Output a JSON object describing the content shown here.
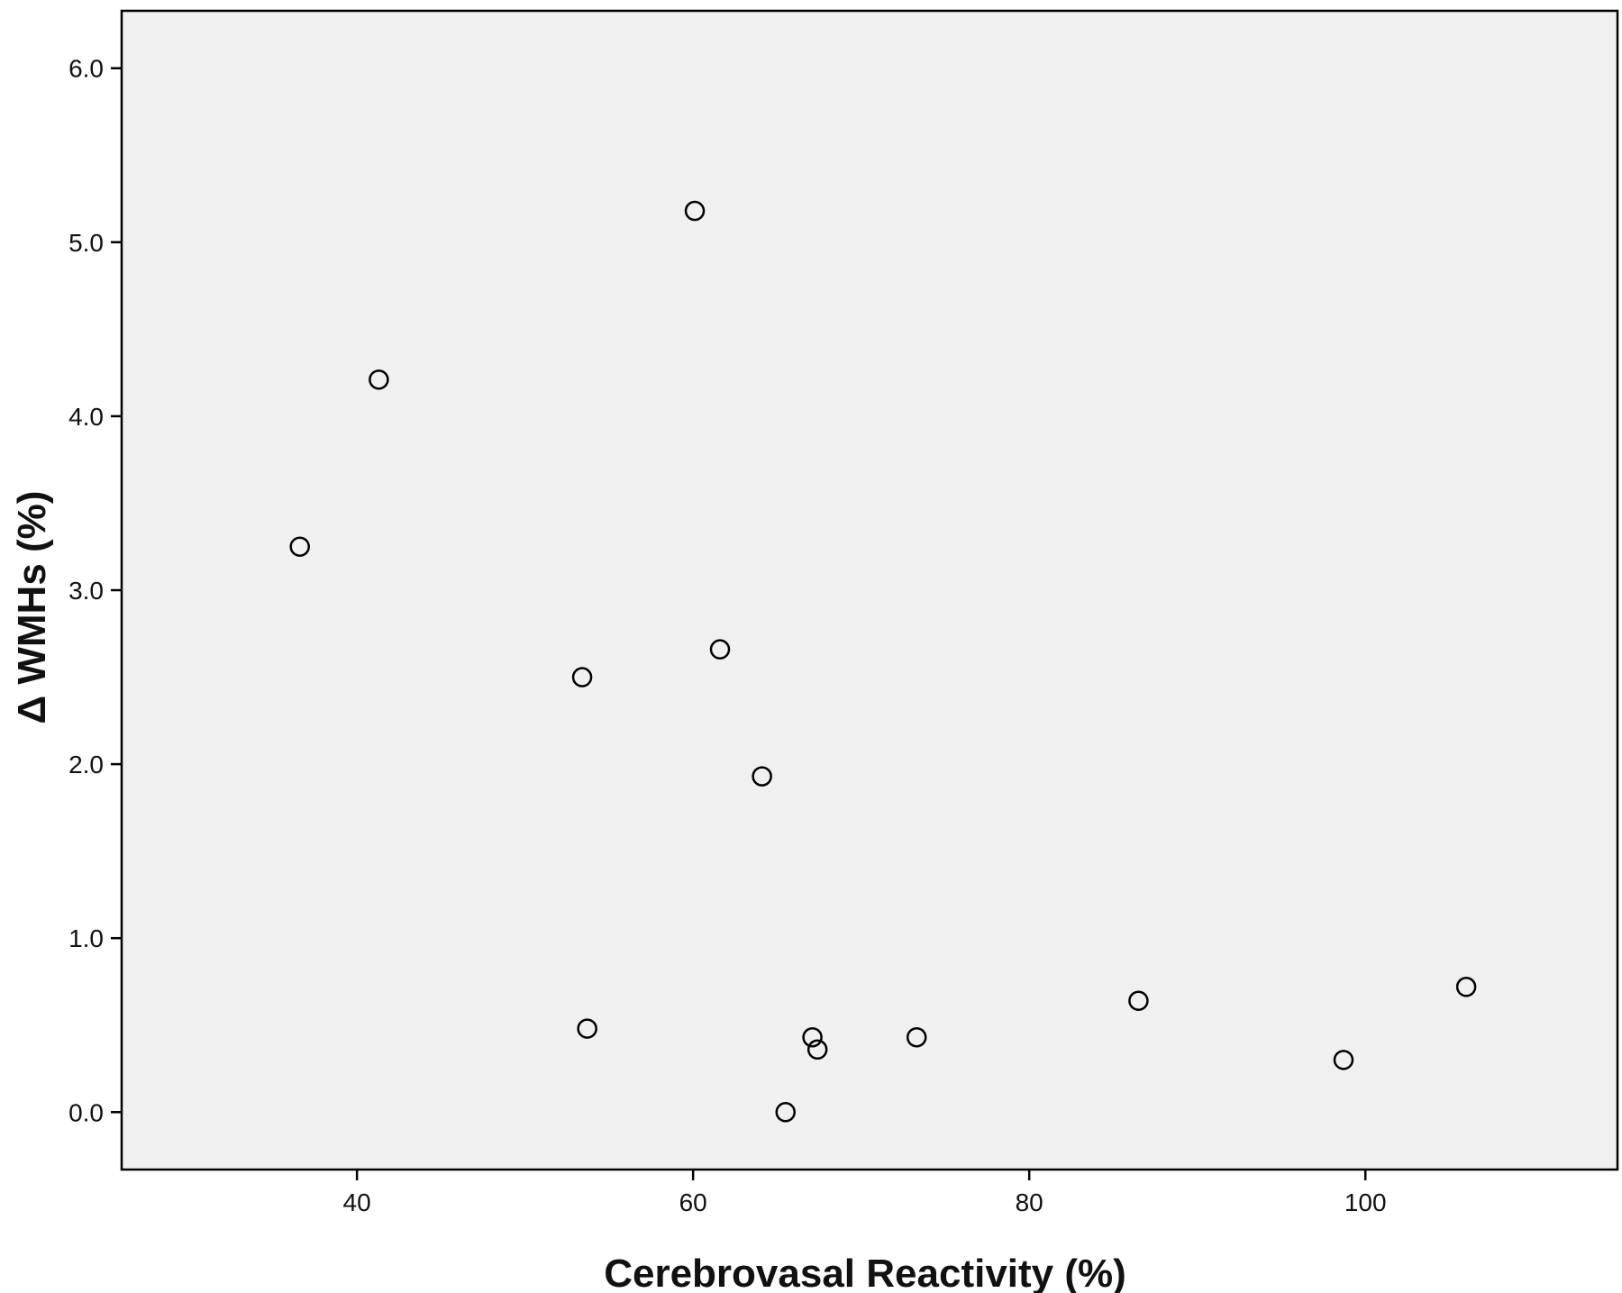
{
  "chart_data": {
    "type": "scatter",
    "xlabel": "Cerebrovasal Reactivity (%)",
    "ylabel": "Δ WMHs (%)",
    "xlim": [
      26,
      115
    ],
    "ylim": [
      -0.33,
      6.33
    ],
    "xticks": [
      40,
      60,
      80,
      100
    ],
    "yticks": [
      0.0,
      1.0,
      2.0,
      3.0,
      4.0,
      5.0,
      6.0
    ],
    "xtick_labels": [
      "40",
      "60",
      "80",
      "100"
    ],
    "ytick_labels": [
      "0.0",
      "1.0",
      "2.0",
      "3.0",
      "4.0",
      "5.0",
      "6.0"
    ],
    "grid": false,
    "legend": "none",
    "plot_background": "#f0f0f0",
    "marker": "open-circle",
    "marker_color": "#000000",
    "series": [
      {
        "points": [
          {
            "x": 36.6,
            "y": 3.25
          },
          {
            "x": 41.3,
            "y": 4.21
          },
          {
            "x": 53.4,
            "y": 2.5
          },
          {
            "x": 53.7,
            "y": 0.48
          },
          {
            "x": 60.1,
            "y": 5.18
          },
          {
            "x": 61.6,
            "y": 2.66
          },
          {
            "x": 64.1,
            "y": 1.93
          },
          {
            "x": 65.5,
            "y": 0.0
          },
          {
            "x": 67.1,
            "y": 0.43
          },
          {
            "x": 67.4,
            "y": 0.36
          },
          {
            "x": 73.3,
            "y": 0.43
          },
          {
            "x": 86.5,
            "y": 0.64
          },
          {
            "x": 98.7,
            "y": 0.3
          },
          {
            "x": 106.0,
            "y": 0.72
          }
        ]
      }
    ]
  }
}
